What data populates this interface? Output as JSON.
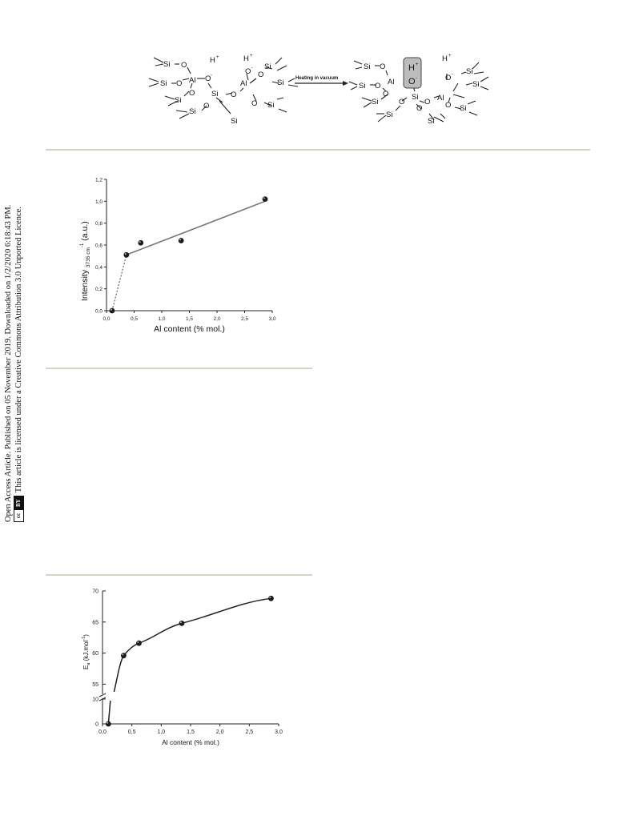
{
  "sidebar": {
    "line1": "Open Access Article. Published on 05 November 2019. Downloaded on 1/2/2020 6:18:43 PM.",
    "line2": "This article is licensed under a Creative Commons Attribution 3.0 Unported Licence.",
    "license_badge_left": "cc",
    "license_badge_right": "BY"
  },
  "scheme": {
    "arrow_label": "Heating in vacuum",
    "atoms": {
      "si": "Si",
      "o": "O",
      "al": "Al",
      "h": "H",
      "plus": "+",
      "minus": "-"
    }
  },
  "chart_data": [
    {
      "type": "scatter",
      "xlabel": "Al content (% mol.)",
      "ylabel": "Intensity",
      "ylabel_sub": "3735 cm",
      "ylabel_sup": "-1",
      "ylabel_unit": "(a.u.)",
      "xlim": [
        0,
        3.0
      ],
      "ylim": [
        0,
        1.2
      ],
      "xticks": [
        "0,0",
        "0,5",
        "1,0",
        "1,5",
        "2,0",
        "2,5",
        "3,0"
      ],
      "yticks": [
        "0,0",
        "0,2",
        "0,4",
        "0,6",
        "0,8",
        "1,0",
        "1,2"
      ],
      "points": [
        {
          "x": 0.1,
          "y": 0.0
        },
        {
          "x": 0.36,
          "y": 0.51
        },
        {
          "x": 0.62,
          "y": 0.62
        },
        {
          "x": 1.35,
          "y": 0.64
        },
        {
          "x": 2.87,
          "y": 1.02
        }
      ],
      "fit_line": [
        {
          "x": 0.36,
          "y": 0.51
        },
        {
          "x": 2.87,
          "y": 1.0
        }
      ],
      "dashed_line": [
        {
          "x": 0.1,
          "y": 0.0
        },
        {
          "x": 0.36,
          "y": 0.51
        }
      ]
    },
    {
      "type": "line",
      "xlabel": "Al content  (% mol.)",
      "ylabel": "E",
      "ylabel_sub": "a",
      "ylabel_unit": "(kJ.mol",
      "ylabel_sup": "-1",
      "ylabel_close": ")",
      "xlim": [
        0,
        3.0
      ],
      "xticks": [
        "0,0",
        "0,5",
        "1,0",
        "1,5",
        "2,0",
        "2,5",
        "3,0"
      ],
      "yticks_upper": [
        "55",
        "60",
        "65",
        "70"
      ],
      "yticks_lower": [
        "0",
        "10"
      ],
      "ylim_upper": [
        53.5,
        70
      ],
      "ylim_lower": [
        0,
        10
      ],
      "axis_break": true,
      "points": [
        {
          "x": 0.1,
          "y": 0
        },
        {
          "x": 0.36,
          "y": 59.6
        },
        {
          "x": 0.62,
          "y": 61.6
        },
        {
          "x": 1.35,
          "y": 64.8
        },
        {
          "x": 2.87,
          "y": 68.8
        }
      ]
    }
  ]
}
